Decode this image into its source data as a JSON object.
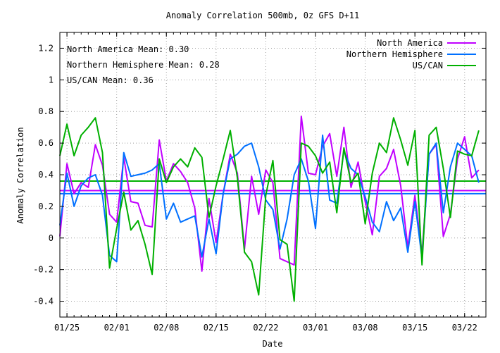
{
  "chart_data": {
    "type": "line",
    "title": "Anomaly Correlation 500mb, 0z GFS  D+11",
    "xlabel": "Date",
    "ylabel": "Anomaly Correlation",
    "ylim": [
      -0.5,
      1.3
    ],
    "yticks": [
      "-0.4",
      "-0.2",
      "0",
      "0.2",
      "0.4",
      "0.6",
      "0.8",
      "1",
      "1.2"
    ],
    "xlim": [
      0,
      60
    ],
    "xticks": [
      {
        "x": 1,
        "label": "01/25"
      },
      {
        "x": 8,
        "label": "02/01"
      },
      {
        "x": 15,
        "label": "02/08"
      },
      {
        "x": 22,
        "label": "02/15"
      },
      {
        "x": 29,
        "label": "02/22"
      },
      {
        "x": 36,
        "label": "03/01"
      },
      {
        "x": 43,
        "label": "03/08"
      },
      {
        "x": 50,
        "label": "03/15"
      },
      {
        "x": 57,
        "label": "03/22"
      }
    ],
    "grid": true,
    "legend_position": "top-right",
    "annotations": [
      "North America Mean: 0.30",
      "Northern Hemisphere Mean: 0.28",
      "US/CAN Mean: 0.36"
    ],
    "series": [
      {
        "name": "North America",
        "color": "#c000ff",
        "mean": 0.3,
        "values": [
          0.01,
          0.47,
          0.28,
          0.35,
          0.32,
          0.59,
          0.46,
          0.15,
          0.1,
          0.51,
          0.23,
          0.22,
          0.08,
          0.07,
          0.62,
          0.36,
          0.47,
          0.42,
          0.35,
          0.19,
          -0.21,
          0.25,
          -0.03,
          0.28,
          0.53,
          0.41,
          -0.07,
          0.39,
          0.15,
          0.43,
          0.35,
          -0.13,
          -0.15,
          -0.17,
          0.77,
          0.41,
          0.4,
          0.58,
          0.66,
          0.39,
          0.7,
          0.32,
          0.48,
          0.23,
          0.02,
          0.39,
          0.44,
          0.56,
          0.33,
          -0.06,
          0.27,
          -0.1,
          0.53,
          0.59,
          0.01,
          0.15,
          0.5,
          0.64,
          0.38,
          0.43
        ]
      },
      {
        "name": "Northern Hemisphere",
        "color": "#0070ff",
        "mean": 0.28,
        "values": [
          0.08,
          0.41,
          0.2,
          0.33,
          0.38,
          0.4,
          0.27,
          -0.11,
          -0.15,
          0.54,
          0.39,
          0.4,
          0.41,
          0.43,
          0.47,
          0.12,
          0.22,
          0.1,
          0.12,
          0.14,
          -0.12,
          0.12,
          -0.1,
          0.28,
          0.5,
          0.53,
          0.58,
          0.6,
          0.45,
          0.24,
          0.18,
          -0.07,
          0.12,
          0.4,
          0.5,
          0.36,
          0.06,
          0.65,
          0.24,
          0.22,
          0.55,
          0.44,
          0.4,
          0.26,
          0.1,
          0.04,
          0.23,
          0.11,
          0.19,
          -0.09,
          0.23,
          -0.13,
          0.53,
          0.6,
          0.16,
          0.45,
          0.6,
          0.56,
          0.52,
          0.35
        ]
      },
      {
        "name": "US/CAN",
        "color": "#00b000",
        "mean": 0.36,
        "values": [
          0.52,
          0.72,
          0.52,
          0.65,
          0.7,
          0.76,
          0.54,
          -0.19,
          0.06,
          0.29,
          0.05,
          0.11,
          -0.04,
          -0.23,
          0.5,
          0.35,
          0.45,
          0.5,
          0.45,
          0.57,
          0.51,
          0.13,
          0.33,
          0.5,
          0.68,
          0.38,
          -0.09,
          -0.15,
          -0.36,
          0.27,
          0.49,
          -0.01,
          -0.04,
          -0.4,
          0.6,
          0.58,
          0.52,
          0.41,
          0.48,
          0.16,
          0.57,
          0.35,
          0.41,
          0.09,
          0.41,
          0.6,
          0.54,
          0.76,
          0.62,
          0.46,
          0.68,
          -0.17,
          0.65,
          0.7,
          0.44,
          0.13,
          0.55,
          0.53,
          0.52,
          0.68
        ]
      }
    ]
  }
}
